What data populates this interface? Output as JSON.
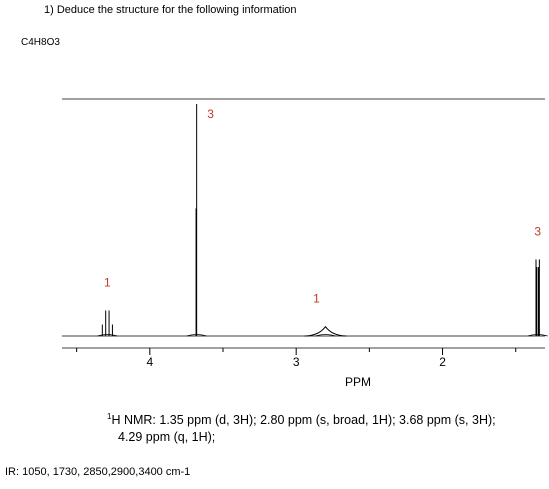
{
  "question": "1) Deduce the structure for the following information",
  "formula": "C4H8O3",
  "nmr": {
    "line1": "H NMR: 1.35 ppm (d, 3H); 2.80 ppm (s, broad, 1H); 3.68 ppm (s, 3H);",
    "line1_sup": "1",
    "line2": "4.29 ppm (q, 1H);"
  },
  "ir": "IR: 1050, 1730, 2850,2900,3400 cm-1",
  "chart_data": {
    "type": "line",
    "title": "",
    "xlabel": "PPM",
    "ylabel": "",
    "x_reversed": true,
    "xlim": [
      4.6,
      1.3
    ],
    "x_ticks": [
      4,
      3,
      2
    ],
    "x_tick_labels": [
      "4",
      "3",
      "2"
    ],
    "grid": false,
    "peaks": [
      {
        "ppm": 4.29,
        "multiplicity": "q",
        "rel_height": 0.11,
        "integration_label": "1",
        "label_color": "#c0392b"
      },
      {
        "ppm": 3.68,
        "multiplicity": "s",
        "rel_height": 1.0,
        "integration_label": "3",
        "label_color": "#c0392b"
      },
      {
        "ppm": 2.8,
        "multiplicity": "br s",
        "rel_height": 0.04,
        "integration_label": "1",
        "label_color": "#c0392b"
      },
      {
        "ppm": 1.35,
        "multiplicity": "d",
        "rel_height": 0.33,
        "integration_label": "3",
        "label_color": "#c0392b"
      }
    ]
  }
}
